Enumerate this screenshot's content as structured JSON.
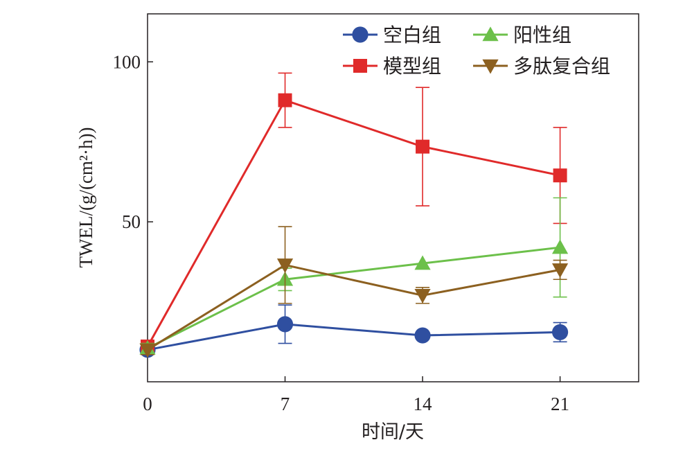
{
  "chart_data": {
    "type": "line",
    "xlabel": "时间/天",
    "ylabel": "TWEL/(g/(cm²·h))",
    "x": [
      0,
      7,
      14,
      21
    ],
    "x_ticks": [
      "0",
      "7",
      "14",
      "21"
    ],
    "y_ticks": [
      "50",
      "100"
    ],
    "xlim": [
      0,
      25
    ],
    "ylim": [
      0,
      115
    ],
    "grid": false,
    "legend_position": "top-right",
    "series": [
      {
        "name": "空白组",
        "color": "#2f4fa0",
        "marker": "circle",
        "values": [
          10,
          18,
          14.5,
          15.5
        ],
        "errors": [
          1.5,
          6,
          0,
          3
        ]
      },
      {
        "name": "模型组",
        "color": "#e02a2a",
        "marker": "square",
        "values": [
          11,
          88,
          73.5,
          64.5
        ],
        "errors": [
          2,
          8.5,
          18.5,
          15
        ]
      },
      {
        "name": "阳性组",
        "color": "#6cc04a",
        "marker": "triangle-up",
        "values": [
          10.5,
          32,
          37,
          42
        ],
        "errors": [
          1.5,
          3.5,
          0,
          15.5
        ]
      },
      {
        "name": "多肽复合组",
        "color": "#8c6020",
        "marker": "triangle-down",
        "values": [
          10,
          36.5,
          27,
          35
        ],
        "errors": [
          1.5,
          12,
          2.5,
          3
        ]
      }
    ]
  }
}
